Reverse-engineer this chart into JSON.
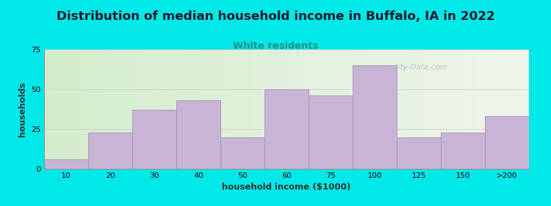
{
  "title": "Distribution of median household income in Buffalo, IA in 2022",
  "subtitle": "White residents",
  "xlabel": "household income ($1000)",
  "ylabel": "households",
  "bar_labels": [
    "10",
    "20",
    "30",
    "40",
    "50",
    "60",
    "75",
    "100",
    "125",
    "150",
    ">200"
  ],
  "bar_values": [
    6,
    23,
    37,
    43,
    20,
    50,
    46,
    65,
    20,
    23,
    33
  ],
  "bar_color": "#c8b4d4",
  "bar_edge_color": "#a090b8",
  "ylim": [
    0,
    75
  ],
  "yticks": [
    0,
    25,
    50,
    75
  ],
  "background_outer": "#00e8e8",
  "plot_bg_left_color": "#d4edcc",
  "plot_bg_right_color": "#f2f5ee",
  "title_fontsize": 13,
  "subtitle_fontsize": 10,
  "title_color": "#1a1a2e",
  "subtitle_color": "#20908a",
  "axis_label_fontsize": 9,
  "tick_fontsize": 8,
  "watermark_text": "City-Data.com",
  "watermark_color": "#b0b8c8",
  "grid_color": "#d0d0d0"
}
